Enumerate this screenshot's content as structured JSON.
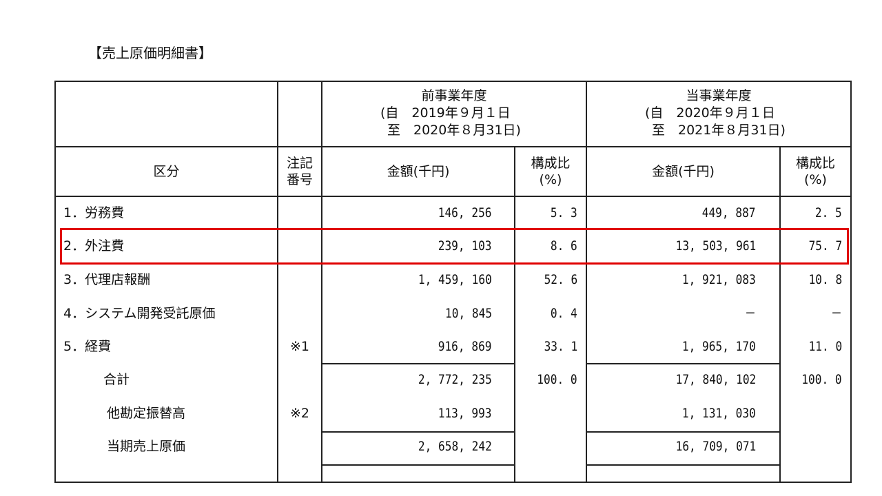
{
  "title": "【売上原価明細書】",
  "header": {
    "prev_period": {
      "label": "前事業年度",
      "from": "(自　2019年９月１日",
      "to": "至　2020年８月31日)"
    },
    "curr_period": {
      "label": "当事業年度",
      "from": "(自　2020年９月１日",
      "to": "至　2021年８月31日)"
    },
    "category": "区分",
    "note_no_1": "注記",
    "note_no_2": "番号",
    "amount": "金額(千円)",
    "ratio_1": "構成比",
    "ratio_2": "(%)"
  },
  "rows": [
    {
      "label": "1．労務費",
      "note": "",
      "prev_amount": "146, 256",
      "prev_ratio": "5. 3",
      "curr_amount": "449, 887",
      "curr_ratio": "2. 5"
    },
    {
      "label": "2．外注費",
      "note": "",
      "prev_amount": "239, 103",
      "prev_ratio": "8. 6",
      "curr_amount": "13, 503, 961",
      "curr_ratio": "75. 7"
    },
    {
      "label": "3．代理店報酬",
      "note": "",
      "prev_amount": "1, 459, 160",
      "prev_ratio": "52. 6",
      "curr_amount": "1, 921, 083",
      "curr_ratio": "10. 8"
    },
    {
      "label": "4．システム開発受託原価",
      "note": "",
      "prev_amount": "10, 845",
      "prev_ratio": "0. 4",
      "curr_amount": "－",
      "curr_ratio": "－"
    },
    {
      "label": "5．経費",
      "note": "※1",
      "prev_amount": "916, 869",
      "prev_ratio": "33. 1",
      "curr_amount": "1, 965, 170",
      "curr_ratio": "11. 0"
    },
    {
      "label": "合計",
      "note": "",
      "prev_amount": "2, 772, 235",
      "prev_ratio": "100. 0",
      "curr_amount": "17, 840, 102",
      "curr_ratio": "100. 0"
    },
    {
      "label": "他勘定振替高",
      "note": "※2",
      "prev_amount": "113, 993",
      "prev_ratio": "",
      "curr_amount": "1, 131, 030",
      "curr_ratio": ""
    },
    {
      "label": "当期売上原価",
      "note": "",
      "prev_amount": "2, 658, 242",
      "prev_ratio": "",
      "curr_amount": "16, 709, 071",
      "curr_ratio": ""
    }
  ],
  "highlight_color": "#e00000"
}
